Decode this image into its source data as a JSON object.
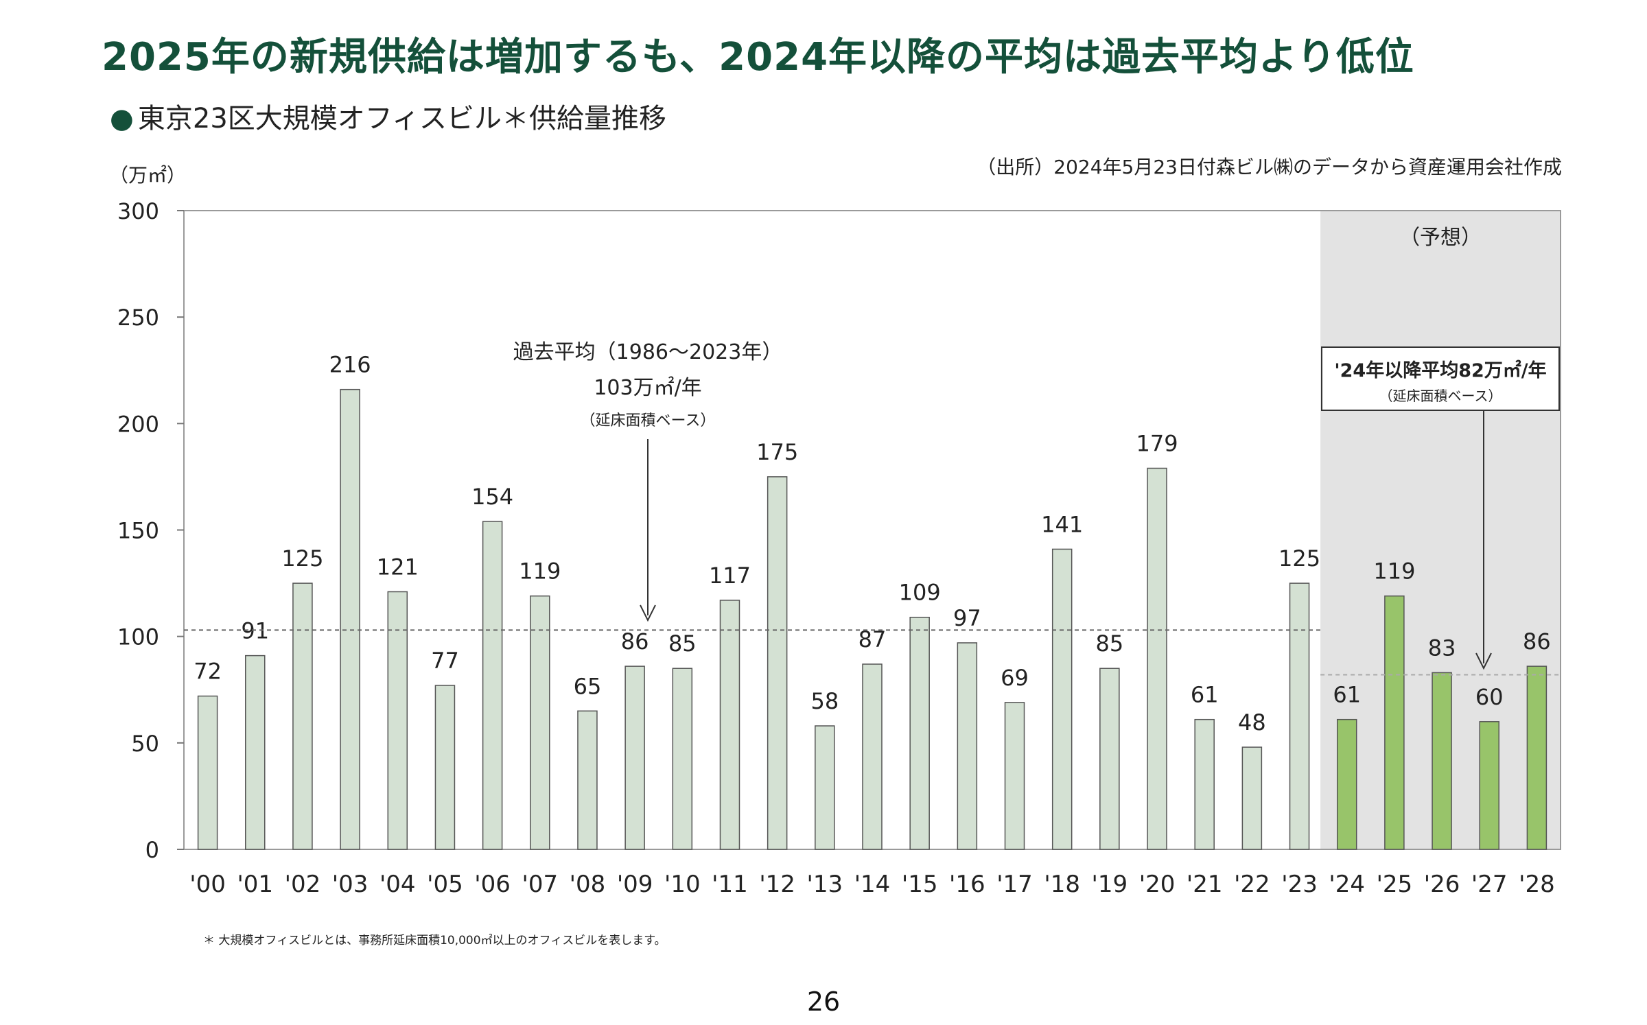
{
  "headline": "2025年の新規供給は増加するも、2024年以降の平均は過去平均より低位",
  "subtitle": "東京23区大規模オフィスビル＊供給量推移",
  "subtitle_bullet": "●",
  "source": "（出所）2024年5月23日付森ビル㈱のデータから資産運用会社作成",
  "footnote": "＊ 大規模オフィスビルとは、事務所延床面積10,000㎡以上のオフィスビルを表します。",
  "page_number": "26",
  "colors": {
    "headline": "#14503a",
    "actual_bar": "#d4e1d3",
    "forecast_bar": "#98c46a",
    "forecast_bg": "#e3e3e3",
    "bar_stroke": "#555555"
  },
  "chart_data": {
    "type": "bar",
    "unit_label": "（万㎡）",
    "categories": [
      "'00",
      "'01",
      "'02",
      "'03",
      "'04",
      "'05",
      "'06",
      "'07",
      "'08",
      "'09",
      "'10",
      "'11",
      "'12",
      "'13",
      "'14",
      "'15",
      "'16",
      "'17",
      "'18",
      "'19",
      "'20",
      "'21",
      "'22",
      "'23",
      "'24",
      "'25",
      "'26",
      "'27",
      "'28"
    ],
    "values": [
      72,
      91,
      125,
      216,
      121,
      77,
      154,
      119,
      65,
      86,
      85,
      117,
      175,
      58,
      87,
      109,
      97,
      69,
      141,
      85,
      179,
      61,
      48,
      125,
      61,
      119,
      83,
      60,
      86
    ],
    "forecast_start_index": 24,
    "forecast_label": "（予想）",
    "ylim": [
      0,
      300
    ],
    "yticks": [
      0,
      50,
      100,
      150,
      200,
      250,
      300
    ],
    "grid": false,
    "reference_lines": [
      {
        "value": 103,
        "from_index": 0,
        "to_index": 23,
        "label_line1": "過去平均（1986～2023年）",
        "label_line2": "103万㎡/年",
        "label_line3": "（延床面積ベース）"
      },
      {
        "value": 82,
        "from_index": 24,
        "to_index": 28,
        "label_line1": "'24年以降平均82万㎡/年",
        "label_line2": "（延床面積ベース）"
      }
    ]
  }
}
